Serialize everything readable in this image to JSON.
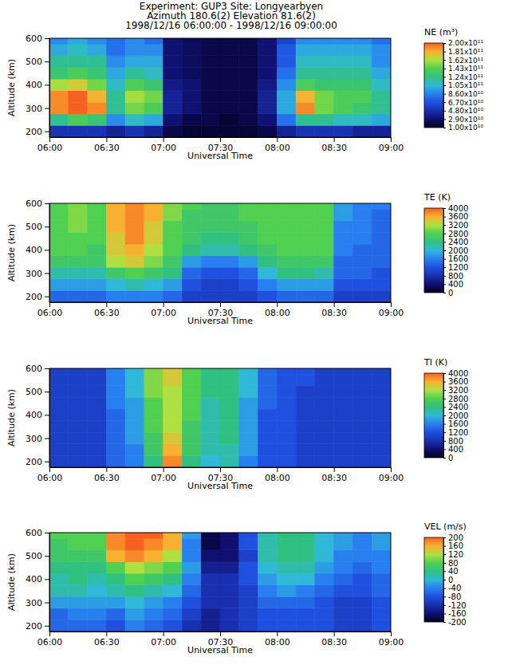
{
  "header": {
    "lines": [
      "Experiment: GUP3  Site: Longyearbyen",
      "Azimuth 180.6(2) Elevation 81.6(2)",
      "1998/12/16 06:00:00 - 1998/12/16 09:00:00"
    ]
  },
  "chart_data": [
    {
      "type": "heatmap",
      "x_label": "Universal Time",
      "y_label": "Altitude (km)",
      "x": [
        365,
        375,
        385,
        395,
        405,
        415,
        425,
        435,
        445,
        455,
        465,
        475,
        485,
        495,
        505,
        515,
        525,
        535
      ],
      "y": [
        200,
        250,
        300,
        350,
        400,
        450,
        500,
        550,
        600
      ],
      "xlim": [
        360,
        540
      ],
      "ylim": [
        175,
        600
      ],
      "xticks": [
        {
          "value": 360,
          "label": "06:00"
        },
        {
          "value": 390,
          "label": "06:30"
        },
        {
          "value": 420,
          "label": "07:00"
        },
        {
          "value": 450,
          "label": "07:30"
        },
        {
          "value": 480,
          "label": "08:00"
        },
        {
          "value": 510,
          "label": "08:30"
        },
        {
          "value": 540,
          "label": "09:00"
        }
      ],
      "yticks": [
        200,
        300,
        400,
        500,
        600
      ],
      "cells": [
        [
          50000000000.0,
          50000000000.0,
          50000000000.0,
          40000000000.0,
          50000000000.0,
          40000000000.0,
          20000000000.0,
          15000000000.0,
          15000000000.0,
          15000000000.0,
          15000000000.0,
          20000000000.0,
          40000000000.0,
          50000000000.0,
          50000000000.0,
          50000000000.0,
          40000000000.0,
          40000000000.0
        ],
        [
          120000000000.0,
          140000000000.0,
          130000000000.0,
          90000000000.0,
          110000000000.0,
          100000000000.0,
          30000000000.0,
          20000000000.0,
          20000000000.0,
          15000000000.0,
          20000000000.0,
          30000000000.0,
          80000000000.0,
          120000000000.0,
          120000000000.0,
          110000000000.0,
          110000000000.0,
          100000000000.0
        ],
        [
          190000000000.0,
          200000000000.0,
          190000000000.0,
          120000000000.0,
          150000000000.0,
          140000000000.0,
          40000000000.0,
          30000000000.0,
          20000000000.0,
          20000000000.0,
          20000000000.0,
          40000000000.0,
          100000000000.0,
          190000000000.0,
          150000000000.0,
          140000000000.0,
          130000000000.0,
          120000000000.0
        ],
        [
          190000000000.0,
          200000000000.0,
          180000000000.0,
          120000000000.0,
          160000000000.0,
          150000000000.0,
          40000000000.0,
          30000000000.0,
          20000000000.0,
          20000000000.0,
          20000000000.0,
          40000000000.0,
          100000000000.0,
          180000000000.0,
          150000000000.0,
          140000000000.0,
          140000000000.0,
          120000000000.0
        ],
        [
          160000000000.0,
          170000000000.0,
          150000000000.0,
          110000000000.0,
          140000000000.0,
          130000000000.0,
          35000000000.0,
          30000000000.0,
          20000000000.0,
          20000000000.0,
          20000000000.0,
          35000000000.0,
          90000000000.0,
          140000000000.0,
          130000000000.0,
          130000000000.0,
          130000000000.0,
          110000000000.0
        ],
        [
          130000000000.0,
          140000000000.0,
          130000000000.0,
          100000000000.0,
          120000000000.0,
          110000000000.0,
          30000000000.0,
          25000000000.0,
          20000000000.0,
          20000000000.0,
          20000000000.0,
          30000000000.0,
          80000000000.0,
          120000000000.0,
          120000000000.0,
          120000000000.0,
          120000000000.0,
          100000000000.0
        ],
        [
          120000000000.0,
          120000000000.0,
          120000000000.0,
          90000000000.0,
          100000000000.0,
          100000000000.0,
          30000000000.0,
          25000000000.0,
          20000000000.0,
          20000000000.0,
          20000000000.0,
          30000000000.0,
          70000000000.0,
          110000000000.0,
          110000000000.0,
          110000000000.0,
          110000000000.0,
          90000000000.0
        ],
        [
          100000000000.0,
          110000000000.0,
          100000000000.0,
          80000000000.0,
          90000000000.0,
          90000000000.0,
          30000000000.0,
          25000000000.0,
          20000000000.0,
          20000000000.0,
          20000000000.0,
          30000000000.0,
          70000000000.0,
          100000000000.0,
          100000000000.0,
          100000000000.0,
          100000000000.0,
          90000000000.0
        ],
        [
          90000000000.0,
          100000000000.0,
          90000000000.0,
          80000000000.0,
          90000000000.0,
          80000000000.0,
          30000000000.0,
          25000000000.0,
          20000000000.0,
          20000000000.0,
          20000000000.0,
          30000000000.0,
          60000000000.0,
          90000000000.0,
          90000000000.0,
          90000000000.0,
          90000000000.0,
          80000000000.0
        ]
      ],
      "colorbar": {
        "title": "NE (m³)",
        "range": [
          10000000000.0,
          200000000000.0
        ],
        "ticks": [
          {
            "value": 200000000000.0,
            "label": "2.00x10¹¹"
          },
          {
            "value": 181000000000.0,
            "label": "1.81x10¹¹"
          },
          {
            "value": 162000000000.0,
            "label": "1.62x10¹¹"
          },
          {
            "value": 143000000000.0,
            "label": "1.43x10¹¹"
          },
          {
            "value": 124000000000.0,
            "label": "1.24x10¹¹"
          },
          {
            "value": 105000000000.0,
            "label": "1.05x10¹¹"
          },
          {
            "value": 86000000000.0,
            "label": "8.60x10¹⁰"
          },
          {
            "value": 67000000000.0,
            "label": "6.70x10¹⁰"
          },
          {
            "value": 48000000000.0,
            "label": "4.80x10¹⁰"
          },
          {
            "value": 29000000000.0,
            "label": "2.90x10¹⁰"
          },
          {
            "value": 10000000000.0,
            "label": "1.00x10¹⁰"
          }
        ]
      }
    },
    {
      "type": "heatmap",
      "x_label": "Universal Time",
      "y_label": "Altitude (km)",
      "x": [
        365,
        375,
        385,
        395,
        405,
        415,
        425,
        435,
        445,
        455,
        465,
        475,
        485,
        495,
        505,
        515,
        525,
        535
      ],
      "y": [
        200,
        250,
        300,
        350,
        400,
        450,
        500,
        550,
        600
      ],
      "xlim": [
        360,
        540
      ],
      "ylim": [
        175,
        600
      ],
      "xticks": [
        {
          "value": 360,
          "label": "06:00"
        },
        {
          "value": 390,
          "label": "06:30"
        },
        {
          "value": 420,
          "label": "07:00"
        },
        {
          "value": 450,
          "label": "07:30"
        },
        {
          "value": 480,
          "label": "08:00"
        },
        {
          "value": 510,
          "label": "08:30"
        },
        {
          "value": 540,
          "label": "09:00"
        }
      ],
      "yticks": [
        200,
        300,
        400,
        500,
        600
      ],
      "cells": [
        [
          1400,
          1400,
          1400,
          1600,
          1600,
          1600,
          1400,
          1000,
          1000,
          1000,
          1000,
          1200,
          1400,
          1400,
          1400,
          1000,
          1000,
          1000
        ],
        [
          1800,
          1800,
          1800,
          2000,
          2200,
          2000,
          1800,
          1200,
          1000,
          1000,
          1200,
          1600,
          1800,
          1800,
          1800,
          1200,
          1200,
          1200
        ],
        [
          2200,
          2200,
          2200,
          2600,
          2800,
          2600,
          2400,
          1400,
          1200,
          1200,
          1400,
          2000,
          2400,
          2400,
          2200,
          1400,
          1400,
          1200
        ],
        [
          2600,
          2600,
          2600,
          3200,
          3400,
          3000,
          2600,
          1800,
          1600,
          1600,
          1800,
          2400,
          2600,
          2600,
          2600,
          1400,
          1400,
          1400
        ],
        [
          2800,
          2800,
          2600,
          3400,
          3600,
          3200,
          2800,
          2400,
          2200,
          2200,
          2400,
          2600,
          2800,
          2800,
          2800,
          1600,
          1400,
          1400
        ],
        [
          2800,
          2800,
          2800,
          3400,
          3800,
          3400,
          2800,
          2600,
          2400,
          2400,
          2600,
          2800,
          2800,
          2800,
          2800,
          1600,
          1600,
          1400
        ],
        [
          2800,
          3000,
          2800,
          3600,
          3800,
          3400,
          2800,
          2600,
          2600,
          2600,
          2600,
          2800,
          2800,
          2800,
          2800,
          1600,
          1600,
          1400
        ],
        [
          2800,
          3000,
          2800,
          3600,
          3800,
          3600,
          3000,
          2600,
          2600,
          2600,
          2800,
          2800,
          2800,
          2800,
          2800,
          1800,
          1600,
          1400
        ],
        [
          2800,
          3000,
          2800,
          3600,
          3800,
          3600,
          3000,
          2800,
          2600,
          2600,
          2800,
          2800,
          2800,
          2800,
          2800,
          1800,
          1600,
          1600
        ]
      ],
      "colorbar": {
        "title": "TE (K)",
        "range": [
          0,
          4000
        ],
        "ticks": [
          4000,
          3600,
          3200,
          2800,
          2400,
          2000,
          1600,
          1200,
          800,
          400,
          0
        ]
      }
    },
    {
      "type": "heatmap",
      "x_label": "Universal Time",
      "y_label": "Altitude (km)",
      "x": [
        365,
        375,
        385,
        395,
        405,
        415,
        425,
        435,
        445,
        455,
        465,
        475,
        485,
        495,
        505,
        515,
        525,
        535
      ],
      "y": [
        200,
        250,
        300,
        350,
        400,
        450,
        500,
        550,
        600
      ],
      "xlim": [
        360,
        540
      ],
      "ylim": [
        175,
        600
      ],
      "xticks": [
        {
          "value": 360,
          "label": "06:00"
        },
        {
          "value": 390,
          "label": "06:30"
        },
        {
          "value": 420,
          "label": "07:00"
        },
        {
          "value": 450,
          "label": "07:30"
        },
        {
          "value": 480,
          "label": "08:00"
        },
        {
          "value": 510,
          "label": "08:30"
        },
        {
          "value": 540,
          "label": "09:00"
        }
      ],
      "yticks": [
        200,
        300,
        400,
        500,
        600
      ],
      "cells": [
        [
          1000,
          1000,
          1000,
          1400,
          1600,
          2400,
          3800,
          2400,
          2000,
          2200,
          1600,
          1200,
          1200,
          1000,
          1000,
          1000,
          1000,
          1000
        ],
        [
          1000,
          1000,
          1000,
          1400,
          1600,
          2600,
          3600,
          2600,
          2200,
          2200,
          1800,
          1200,
          1200,
          1000,
          1000,
          1000,
          1000,
          1000
        ],
        [
          1000,
          1000,
          1000,
          1400,
          1800,
          2600,
          3400,
          2600,
          2200,
          2400,
          1800,
          1200,
          1200,
          1000,
          1000,
          1000,
          1000,
          1000
        ],
        [
          1000,
          1000,
          1000,
          1400,
          1800,
          2800,
          3200,
          2600,
          2200,
          2400,
          1800,
          1200,
          1200,
          1000,
          1000,
          1000,
          1000,
          1000
        ],
        [
          1000,
          1000,
          1000,
          1400,
          1800,
          2800,
          3200,
          2800,
          2200,
          2400,
          1800,
          1200,
          1200,
          1000,
          1000,
          1000,
          1000,
          1000
        ],
        [
          1000,
          1000,
          1000,
          1600,
          1800,
          2800,
          3200,
          2800,
          2200,
          2400,
          1800,
          1400,
          1200,
          1000,
          1000,
          1000,
          1000,
          1000
        ],
        [
          1000,
          1000,
          1000,
          1600,
          2000,
          3000,
          3200,
          2800,
          2400,
          2400,
          2000,
          1400,
          1200,
          1000,
          1000,
          1000,
          1000,
          1000
        ],
        [
          1000,
          1000,
          1000,
          1600,
          2000,
          3000,
          3400,
          2800,
          2400,
          2400,
          2000,
          1400,
          1200,
          1200,
          1000,
          1000,
          1000,
          1000
        ],
        [
          1000,
          1000,
          1000,
          1600,
          2000,
          3000,
          3400,
          2800,
          2400,
          2400,
          2000,
          1400,
          1200,
          1200,
          1000,
          1000,
          1000,
          1000
        ]
      ],
      "colorbar": {
        "title": "TI (K)",
        "range": [
          0,
          4000
        ],
        "ticks": [
          4000,
          3600,
          3200,
          2800,
          2400,
          2000,
          1600,
          1200,
          800,
          400,
          0
        ]
      }
    },
    {
      "type": "heatmap",
      "x_label": "Universal Time",
      "y_label": "Altitude (km)",
      "x": [
        365,
        375,
        385,
        395,
        405,
        415,
        425,
        435,
        445,
        455,
        465,
        475,
        485,
        495,
        505,
        515,
        525,
        535
      ],
      "y": [
        200,
        250,
        300,
        350,
        400,
        450,
        500,
        550,
        600
      ],
      "xlim": [
        360,
        540
      ],
      "ylim": [
        175,
        600
      ],
      "xticks": [
        {
          "value": 360,
          "label": "06:00"
        },
        {
          "value": 390,
          "label": "06:30"
        },
        {
          "value": 420,
          "label": "07:00"
        },
        {
          "value": 450,
          "label": "07:30"
        },
        {
          "value": 480,
          "label": "08:00"
        },
        {
          "value": 510,
          "label": "08:30"
        },
        {
          "value": 540,
          "label": "09:00"
        }
      ],
      "yticks": [
        200,
        300,
        400,
        500,
        600
      ],
      "cells": [
        [
          -60,
          -60,
          -60,
          -80,
          -40,
          -60,
          -80,
          -120,
          -140,
          -120,
          -100,
          -80,
          -80,
          -80,
          -80,
          -100,
          -100,
          -80
        ],
        [
          -60,
          -40,
          -40,
          -60,
          -20,
          -40,
          -60,
          -100,
          -140,
          -120,
          -100,
          -80,
          -80,
          -80,
          -80,
          -100,
          -100,
          -80
        ],
        [
          -20,
          -20,
          -20,
          -20,
          0,
          -20,
          -40,
          -80,
          -120,
          -120,
          -100,
          -60,
          -60,
          -60,
          -80,
          -100,
          -100,
          -80
        ],
        [
          20,
          20,
          0,
          20,
          40,
          20,
          0,
          -60,
          -120,
          -120,
          -100,
          -40,
          -20,
          -40,
          -60,
          -80,
          -80,
          -60
        ],
        [
          20,
          40,
          20,
          40,
          80,
          60,
          40,
          -40,
          -120,
          -120,
          -80,
          -20,
          0,
          0,
          -40,
          -60,
          -80,
          -60
        ],
        [
          40,
          40,
          40,
          80,
          120,
          100,
          80,
          -20,
          -140,
          -140,
          -80,
          0,
          20,
          20,
          -20,
          -40,
          -60,
          -40
        ],
        [
          60,
          60,
          60,
          160,
          180,
          160,
          120,
          -40,
          -160,
          -160,
          -100,
          20,
          40,
          40,
          0,
          -40,
          -40,
          -40
        ],
        [
          60,
          80,
          80,
          180,
          200,
          180,
          160,
          -40,
          -180,
          -160,
          -80,
          20,
          40,
          40,
          0,
          -20,
          -40,
          -20
        ],
        [
          80,
          80,
          80,
          180,
          200,
          200,
          160,
          -20,
          -180,
          -160,
          -80,
          20,
          40,
          40,
          0,
          -20,
          -40,
          -20
        ]
      ],
      "colorbar": {
        "title": "VEL (m/s)",
        "range": [
          -200,
          200
        ],
        "ticks": [
          200,
          160,
          120,
          80,
          40,
          0,
          -40,
          -80,
          -120,
          -160,
          -200
        ]
      }
    }
  ]
}
